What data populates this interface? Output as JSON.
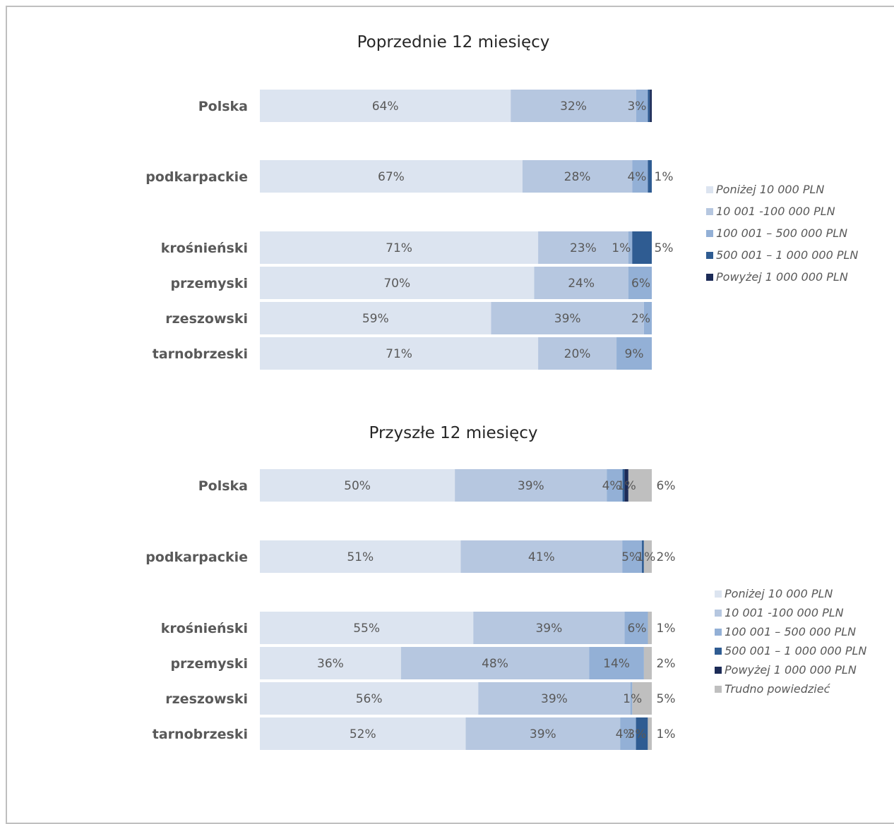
{
  "chart_data": [
    {
      "type": "bar",
      "orientation": "horizontal",
      "stacked": "100%",
      "title": "Poprzednie 12 miesięcy",
      "categories": [
        "Polska",
        "podkarpackie",
        "krośnieński",
        "przemyski",
        "rzeszowski",
        "tarnobrzeski"
      ],
      "series": [
        {
          "name": "Poniżej 10 000 PLN",
          "color": "#dce4f0",
          "values": [
            64,
            67,
            71,
            70,
            59,
            71
          ],
          "labels": [
            "64%",
            "67%",
            "71%",
            "70%",
            "59%",
            "71%"
          ]
        },
        {
          "name": "10 001 -100 000 PLN",
          "color": "#b6c7e0",
          "values": [
            32,
            28,
            23,
            24,
            39,
            20
          ],
          "labels": [
            "32%",
            "28%",
            "23%",
            "24%",
            "39%",
            "20%"
          ]
        },
        {
          "name": "100 001 – 500 000 PLN",
          "color": "#93b0d6",
          "values": [
            3,
            4,
            1,
            6,
            2,
            9
          ],
          "labels": [
            "3%",
            "4%",
            "1%",
            "6%",
            "2%",
            "9%"
          ]
        },
        {
          "name": "500 001 – 1 000 000 PLN",
          "color": "#2f5c92",
          "values": [
            0.5,
            1,
            5,
            0,
            0,
            0
          ],
          "labels": [
            "",
            "1%",
            "5%",
            "",
            "",
            ""
          ]
        },
        {
          "name": "Powyżej 1 000 000 PLN",
          "color": "#1c2b57",
          "values": [
            0.5,
            0,
            0,
            0,
            0,
            0
          ],
          "labels": [
            "",
            "",
            "",
            "",
            "",
            ""
          ]
        }
      ],
      "legend_position": "right"
    },
    {
      "type": "bar",
      "orientation": "horizontal",
      "stacked": "100%",
      "title": "Przyszłe 12 miesięcy",
      "categories": [
        "Polska",
        "podkarpackie",
        "krośnieński",
        "przemyski",
        "rzeszowski",
        "tarnobrzeski"
      ],
      "series": [
        {
          "name": "Poniżej 10 000 PLN",
          "color": "#dce4f0",
          "values": [
            50,
            51,
            55,
            36,
            56,
            52
          ],
          "labels": [
            "50%",
            "51%",
            "55%",
            "36%",
            "56%",
            "52%"
          ]
        },
        {
          "name": "10 001 -100 000 PLN",
          "color": "#b6c7e0",
          "values": [
            39,
            41,
            39,
            48,
            39,
            39
          ],
          "labels": [
            "39%",
            "41%",
            "39%",
            "48%",
            "39%",
            "39%"
          ]
        },
        {
          "name": "100 001 – 500 000 PLN",
          "color": "#93b0d6",
          "values": [
            4,
            5,
            6,
            14,
            0.5,
            4
          ],
          "labels": [
            "4%",
            "5%",
            "6%",
            "14%",
            "",
            "4%"
          ]
        },
        {
          "name": "500 001 – 1 000 000 PLN",
          "color": "#2f5c92",
          "values": [
            0.5,
            0.5,
            0,
            0,
            0,
            3
          ],
          "labels": [
            "",
            "",
            "",
            "",
            "",
            "3%"
          ]
        },
        {
          "name": "Powyżej 1 000 000 PLN",
          "color": "#1c2b57",
          "values": [
            1,
            0,
            0,
            0,
            0,
            0
          ],
          "labels": [
            "",
            "",
            "",
            "",
            "",
            ""
          ]
        },
        {
          "name": "Trudno powiedzieć",
          "color": "#bfbfbf",
          "values": [
            6,
            2,
            1,
            2,
            5,
            1
          ],
          "labels": [
            "6%",
            "2%",
            "1%",
            "2%",
            "5%",
            "1%"
          ]
        }
      ],
      "extra_labels": [
        {
          "row": 0,
          "after_series": 3,
          "text": "1%"
        },
        {
          "row": 1,
          "after_series": 3,
          "text": "1%"
        },
        {
          "row": 4,
          "after_series": 1,
          "text": "1%"
        }
      ],
      "legend_position": "right"
    }
  ]
}
